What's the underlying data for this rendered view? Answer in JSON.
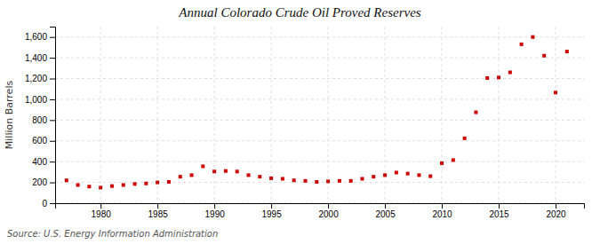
{
  "chart_data": {
    "type": "scatter",
    "title": "Annual Colorado Crude Oil Proved Reserves",
    "ylabel": "Million Barrels",
    "annotations": [
      "Source: U.S. Energy Information Administration"
    ],
    "color": "#cc0000",
    "marker": "square",
    "grid": true,
    "x": [
      1977,
      1978,
      1979,
      1980,
      1981,
      1982,
      1983,
      1984,
      1985,
      1986,
      1987,
      1988,
      1989,
      1990,
      1991,
      1992,
      1993,
      1994,
      1995,
      1996,
      1997,
      1998,
      1999,
      2000,
      2001,
      2002,
      2003,
      2004,
      2005,
      2006,
      2007,
      2008,
      2009,
      2010,
      2011,
      2012,
      2013,
      2014,
      2015,
      2016,
      2017,
      2018,
      2019,
      2020,
      2021
    ],
    "values": [
      220,
      175,
      160,
      150,
      165,
      175,
      185,
      190,
      200,
      205,
      255,
      270,
      355,
      305,
      310,
      305,
      270,
      255,
      240,
      235,
      220,
      215,
      205,
      210,
      215,
      215,
      235,
      255,
      270,
      295,
      285,
      270,
      260,
      385,
      415,
      625,
      875,
      1205,
      1210,
      1260,
      1530,
      1600,
      1420,
      1065,
      1460
    ],
    "xlim": [
      1976,
      2022.5
    ],
    "ylim": [
      0,
      1700
    ],
    "xticks": [
      1980,
      1985,
      1990,
      1995,
      2000,
      2005,
      2010,
      2015,
      2020
    ],
    "yticks": [
      0,
      200,
      400,
      600,
      800,
      {
        "value": 1000,
        "label": "1,000"
      },
      {
        "value": 1200,
        "label": "1,200"
      },
      {
        "value": 1400,
        "label": "1,400"
      },
      {
        "value": 1600,
        "label": "1,600"
      }
    ]
  }
}
